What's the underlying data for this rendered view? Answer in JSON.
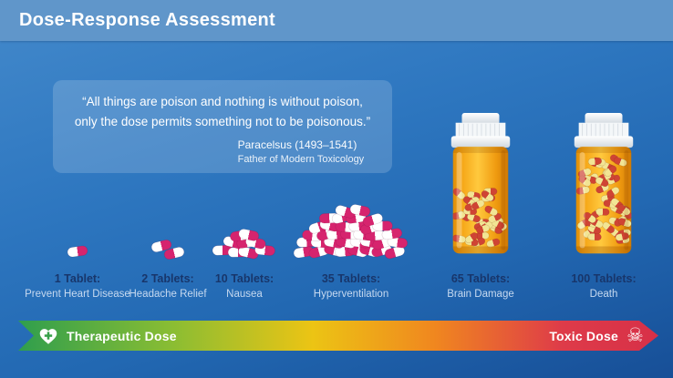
{
  "header": {
    "title": "Dose-Response Assessment"
  },
  "quote": {
    "text": "“All things are poison and nothing is without poison, only the dose permits something not to be poisonous.”",
    "author": "Paracelsus (1493–1541)",
    "author_subtitle": "Father of Modern Toxicology"
  },
  "doses": [
    {
      "tablets": 1,
      "count_label": "1 Tablet:",
      "effect": "Prevent Heart Disease",
      "visual": "pile"
    },
    {
      "tablets": 2,
      "count_label": "2 Tablets:",
      "effect": "Headache Relief",
      "visual": "pile"
    },
    {
      "tablets": 10,
      "count_label": "10 Tablets:",
      "effect": "Nausea",
      "visual": "pile"
    },
    {
      "tablets": 35,
      "count_label": "35 Tablets:",
      "effect": "Hyperventilation",
      "visual": "pile"
    },
    {
      "tablets": 65,
      "count_label": "65 Tablets:",
      "effect": "Brain Damage",
      "visual": "bottle",
      "fill_percent": 62
    },
    {
      "tablets": 100,
      "count_label": "100 Tablets:",
      "effect": "Death",
      "visual": "bottle",
      "fill_percent": 92
    }
  ],
  "scale": {
    "left_label": "Therapeutic Dose",
    "right_label": "Toxic Dose",
    "left_icon": "heart-cross-icon",
    "right_icon": "skull-crossbones-icon",
    "gradient": [
      "#2f9e4d",
      "#8abd33",
      "#ecc414",
      "#f0871f",
      "#de3b49",
      "#d73048"
    ]
  },
  "colors": {
    "header_bg": "#6096ca",
    "background_top": "#4389cb",
    "background_bottom": "#174f97",
    "count_label": "#18366b",
    "effect_label": "#c6d9f0",
    "capsule_pink": "#d6246e",
    "bottle_orange": "#f5a515",
    "pill_red": "#cf4434",
    "pill_yellow": "#f2e594",
    "heart_cross_green": "#37a04a"
  }
}
